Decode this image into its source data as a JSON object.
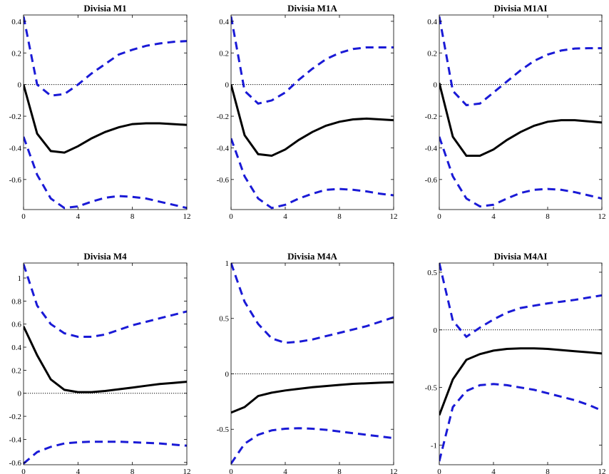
{
  "chart_data": [
    {
      "type": "line",
      "title": "Divisia M1",
      "x": [
        0,
        1,
        2,
        3,
        4,
        5,
        6,
        7,
        8,
        9,
        10,
        11,
        12
      ],
      "xticks": [
        0,
        4,
        8,
        12
      ],
      "xlim": [
        0,
        12
      ],
      "ylim": [
        -0.79,
        0.44
      ],
      "yticks": [
        0.4,
        0.2,
        0,
        -0.2,
        -0.4,
        -0.6
      ],
      "yticklabels": [
        "0.4",
        "0.2",
        "0",
        "-0.2",
        "-0.4",
        "-0.6"
      ],
      "zero_line": 0,
      "series": [
        {
          "role": "estimate",
          "color": "#000000",
          "values": [
            0,
            -0.31,
            -0.42,
            -0.43,
            -0.39,
            -0.34,
            -0.3,
            -0.27,
            -0.25,
            -0.245,
            -0.245,
            -0.25,
            -0.255
          ]
        },
        {
          "role": "upper",
          "color": "#1a1ad6",
          "values": [
            0.43,
            0.0,
            -0.07,
            -0.06,
            0.0,
            0.07,
            0.13,
            0.19,
            0.22,
            0.245,
            0.26,
            0.27,
            0.275
          ]
        },
        {
          "role": "lower",
          "color": "#1a1ad6",
          "values": [
            -0.33,
            -0.57,
            -0.72,
            -0.78,
            -0.77,
            -0.74,
            -0.715,
            -0.705,
            -0.71,
            -0.72,
            -0.74,
            -0.76,
            -0.78
          ]
        }
      ]
    },
    {
      "type": "line",
      "title": "Divisia M1A",
      "x": [
        0,
        1,
        2,
        3,
        4,
        5,
        6,
        7,
        8,
        9,
        10,
        11,
        12
      ],
      "xticks": [
        0,
        4,
        8,
        12
      ],
      "xlim": [
        0,
        12
      ],
      "ylim": [
        -0.79,
        0.44
      ],
      "yticks": [
        0.4,
        0.2,
        0,
        -0.2,
        -0.4,
        -0.6
      ],
      "yticklabels": [
        "0.4",
        "0.2",
        "0",
        "-0.2",
        "-0.4",
        "-0.6"
      ],
      "zero_line": 0,
      "series": [
        {
          "role": "estimate",
          "color": "#000000",
          "values": [
            0,
            -0.32,
            -0.44,
            -0.45,
            -0.41,
            -0.35,
            -0.3,
            -0.26,
            -0.235,
            -0.22,
            -0.215,
            -0.22,
            -0.225
          ]
        },
        {
          "role": "upper",
          "color": "#1a1ad6",
          "values": [
            0.43,
            -0.04,
            -0.12,
            -0.1,
            -0.05,
            0.03,
            0.1,
            0.16,
            0.2,
            0.225,
            0.235,
            0.235,
            0.235
          ]
        },
        {
          "role": "lower",
          "color": "#1a1ad6",
          "values": [
            -0.34,
            -0.58,
            -0.72,
            -0.78,
            -0.76,
            -0.72,
            -0.69,
            -0.665,
            -0.66,
            -0.665,
            -0.675,
            -0.69,
            -0.7
          ]
        }
      ]
    },
    {
      "type": "line",
      "title": "Divisia M1AI",
      "x": [
        0,
        1,
        2,
        3,
        4,
        5,
        6,
        7,
        8,
        9,
        10,
        11,
        12
      ],
      "xticks": [
        0,
        4,
        8,
        12
      ],
      "xlim": [
        0,
        12
      ],
      "ylim": [
        -0.79,
        0.44
      ],
      "yticks": [
        0.4,
        0.2,
        0,
        -0.2,
        -0.4,
        -0.6
      ],
      "yticklabels": [
        "0.4",
        "0.2",
        "0",
        "-0.2",
        "-0.4",
        "-0.6"
      ],
      "zero_line": 0,
      "series": [
        {
          "role": "estimate",
          "color": "#000000",
          "values": [
            0.01,
            -0.33,
            -0.45,
            -0.45,
            -0.41,
            -0.35,
            -0.3,
            -0.26,
            -0.235,
            -0.225,
            -0.225,
            -0.232,
            -0.24
          ]
        },
        {
          "role": "upper",
          "color": "#1a1ad6",
          "values": [
            0.43,
            -0.04,
            -0.13,
            -0.12,
            -0.05,
            0.02,
            0.09,
            0.15,
            0.19,
            0.215,
            0.228,
            0.23,
            0.23
          ]
        },
        {
          "role": "lower",
          "color": "#1a1ad6",
          "values": [
            -0.33,
            -0.58,
            -0.72,
            -0.77,
            -0.76,
            -0.72,
            -0.685,
            -0.665,
            -0.66,
            -0.665,
            -0.68,
            -0.7,
            -0.72
          ]
        }
      ]
    },
    {
      "type": "line",
      "title": "Divisia M4",
      "x": [
        0,
        1,
        2,
        3,
        4,
        5,
        6,
        7,
        8,
        9,
        10,
        11,
        12
      ],
      "xticks": [
        0,
        4,
        8,
        12
      ],
      "xlim": [
        0,
        12
      ],
      "ylim": [
        -0.62,
        1.13
      ],
      "yticks": [
        1,
        0.8,
        0.6,
        0.4,
        0.2,
        0,
        -0.2,
        -0.4,
        -0.6
      ],
      "yticklabels": [
        "1",
        "0.8",
        "0.6",
        "0.4",
        "0.2",
        "0",
        "-0.2",
        "-0.4",
        "-0.6"
      ],
      "zero_line": 0,
      "series": [
        {
          "role": "estimate",
          "color": "#000000",
          "values": [
            0.58,
            0.33,
            0.12,
            0.03,
            0.01,
            0.01,
            0.02,
            0.035,
            0.05,
            0.065,
            0.08,
            0.09,
            0.1
          ]
        },
        {
          "role": "upper",
          "color": "#1a1ad6",
          "values": [
            1.12,
            0.76,
            0.6,
            0.52,
            0.49,
            0.49,
            0.51,
            0.55,
            0.59,
            0.62,
            0.65,
            0.68,
            0.71
          ]
        },
        {
          "role": "lower",
          "color": "#1a1ad6",
          "values": [
            -0.61,
            -0.51,
            -0.465,
            -0.435,
            -0.425,
            -0.42,
            -0.42,
            -0.42,
            -0.425,
            -0.43,
            -0.435,
            -0.445,
            -0.455
          ]
        }
      ]
    },
    {
      "type": "line",
      "title": "Divisia M4A",
      "x": [
        0,
        1,
        2,
        3,
        4,
        5,
        6,
        7,
        8,
        9,
        10,
        11,
        12
      ],
      "xticks": [
        0,
        4,
        8,
        12
      ],
      "xlim": [
        0,
        12
      ],
      "ylim": [
        -0.82,
        1.0
      ],
      "yticks": [
        1,
        0.5,
        0,
        -0.5
      ],
      "yticklabels": [
        "1",
        "0.5",
        "0",
        "-0.5"
      ],
      "zero_line": 0,
      "series": [
        {
          "role": "estimate",
          "color": "#000000",
          "values": [
            -0.35,
            -0.3,
            -0.2,
            -0.17,
            -0.15,
            -0.135,
            -0.12,
            -0.11,
            -0.1,
            -0.09,
            -0.085,
            -0.08,
            -0.075
          ]
        },
        {
          "role": "upper",
          "color": "#1a1ad6",
          "values": [
            1.0,
            0.65,
            0.45,
            0.32,
            0.28,
            0.29,
            0.31,
            0.34,
            0.37,
            0.4,
            0.43,
            0.47,
            0.51
          ]
        },
        {
          "role": "lower",
          "color": "#1a1ad6",
          "values": [
            -0.81,
            -0.63,
            -0.55,
            -0.51,
            -0.495,
            -0.49,
            -0.495,
            -0.505,
            -0.52,
            -0.535,
            -0.55,
            -0.565,
            -0.58
          ]
        }
      ]
    },
    {
      "type": "line",
      "title": "Divisia M4AI",
      "x": [
        0,
        1,
        2,
        3,
        4,
        5,
        6,
        7,
        8,
        9,
        10,
        11,
        12
      ],
      "xticks": [
        0,
        4,
        8,
        12
      ],
      "xlim": [
        0,
        12
      ],
      "ylim": [
        -1.17,
        0.58
      ],
      "yticks": [
        0.5,
        0,
        -0.5,
        -1
      ],
      "yticklabels": [
        "0.5",
        "0",
        "-0.5",
        "-1"
      ],
      "zero_line": 0,
      "series": [
        {
          "role": "estimate",
          "color": "#000000",
          "values": [
            -0.74,
            -0.43,
            -0.26,
            -0.21,
            -0.18,
            -0.165,
            -0.16,
            -0.16,
            -0.165,
            -0.175,
            -0.185,
            -0.195,
            -0.205
          ]
        },
        {
          "role": "upper",
          "color": "#1a1ad6",
          "values": [
            0.58,
            0.08,
            -0.06,
            0.02,
            0.09,
            0.15,
            0.19,
            0.21,
            0.23,
            0.245,
            0.26,
            0.28,
            0.3
          ]
        },
        {
          "role": "lower",
          "color": "#1a1ad6",
          "values": [
            -1.14,
            -0.67,
            -0.53,
            -0.48,
            -0.47,
            -0.48,
            -0.5,
            -0.52,
            -0.55,
            -0.58,
            -0.61,
            -0.65,
            -0.7
          ]
        }
      ]
    }
  ]
}
